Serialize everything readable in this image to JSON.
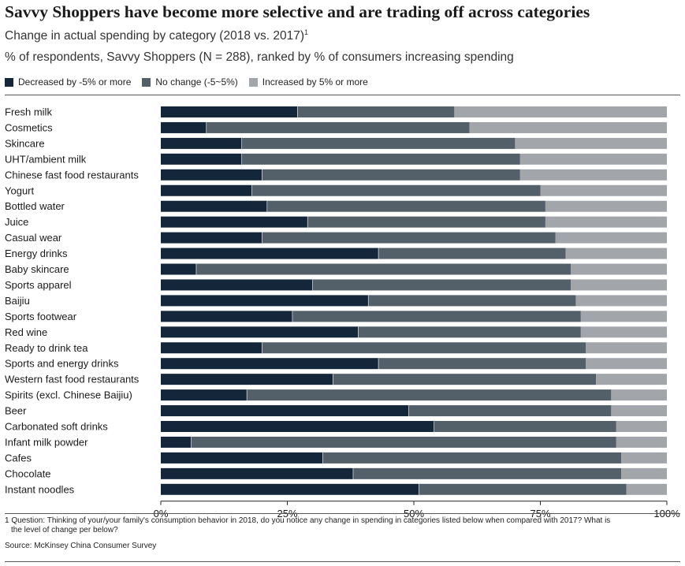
{
  "title": "Savvy Shoppers have become more selective and are trading off across categories",
  "subtitle": "Change in actual spending by category (2018 vs. 2017)",
  "subtitle_sup": "1",
  "subtitle2": "% of respondents, Savvy Shoppers (N = 288), ranked by % of consumers increasing spending",
  "footnote_line1": "1 Question: Thinking of your/your family's consumption behavior in 2018, do you notice any change in spending in categories listed below when compared with 2017? What is",
  "footnote_line2": "the level of change per below?",
  "source": "Source: McKinsey China Consumer Survey",
  "colors": {
    "decreased": "#14263a",
    "no_change": "#546069",
    "increased": "#a2a6aa"
  },
  "chart_data": {
    "type": "bar",
    "orientation": "horizontal",
    "stacked": true,
    "xlim": [
      0,
      100
    ],
    "x_ticks": [
      "0%",
      "25%",
      "50%",
      "75%",
      "100%"
    ],
    "grid": false,
    "legend_position": "top-left",
    "categories": [
      "Fresh milk",
      "Cosmetics",
      "Skincare",
      "UHT/ambient milk",
      "Chinese fast food restaurants",
      "Yogurt",
      "Bottled water",
      "Juice",
      "Casual wear",
      "Energy drinks",
      "Baby skincare",
      "Sports apparel",
      "Baijiu",
      "Sports footwear",
      "Red wine",
      "Ready to drink tea",
      "Sports and energy drinks",
      "Western fast food restaurants",
      "Spirits (excl. Chinese Baijiu)",
      "Beer",
      "Carbonated soft drinks",
      "Infant milk powder",
      "Cafes",
      "Chocolate",
      "Instant noodles"
    ],
    "series": [
      {
        "name": "Decreased by -5% or more",
        "values": [
          27,
          9,
          16,
          16,
          20,
          18,
          21,
          29,
          20,
          43,
          7,
          30,
          41,
          26,
          39,
          20,
          43,
          34,
          17,
          49,
          54,
          6,
          32,
          38,
          51
        ]
      },
      {
        "name": "No change (-5~5%)",
        "values": [
          31,
          52,
          54,
          55,
          51,
          57,
          55,
          47,
          58,
          37,
          74,
          51,
          41,
          57,
          44,
          64,
          41,
          52,
          72,
          40,
          36,
          84,
          59,
          53,
          41
        ]
      },
      {
        "name": "Increased by 5% or more",
        "values": [
          42,
          39,
          30,
          29,
          29,
          25,
          24,
          24,
          22,
          20,
          19,
          19,
          18,
          17,
          17,
          16,
          16,
          14,
          11,
          11,
          10,
          10,
          9,
          9,
          8
        ]
      }
    ]
  }
}
